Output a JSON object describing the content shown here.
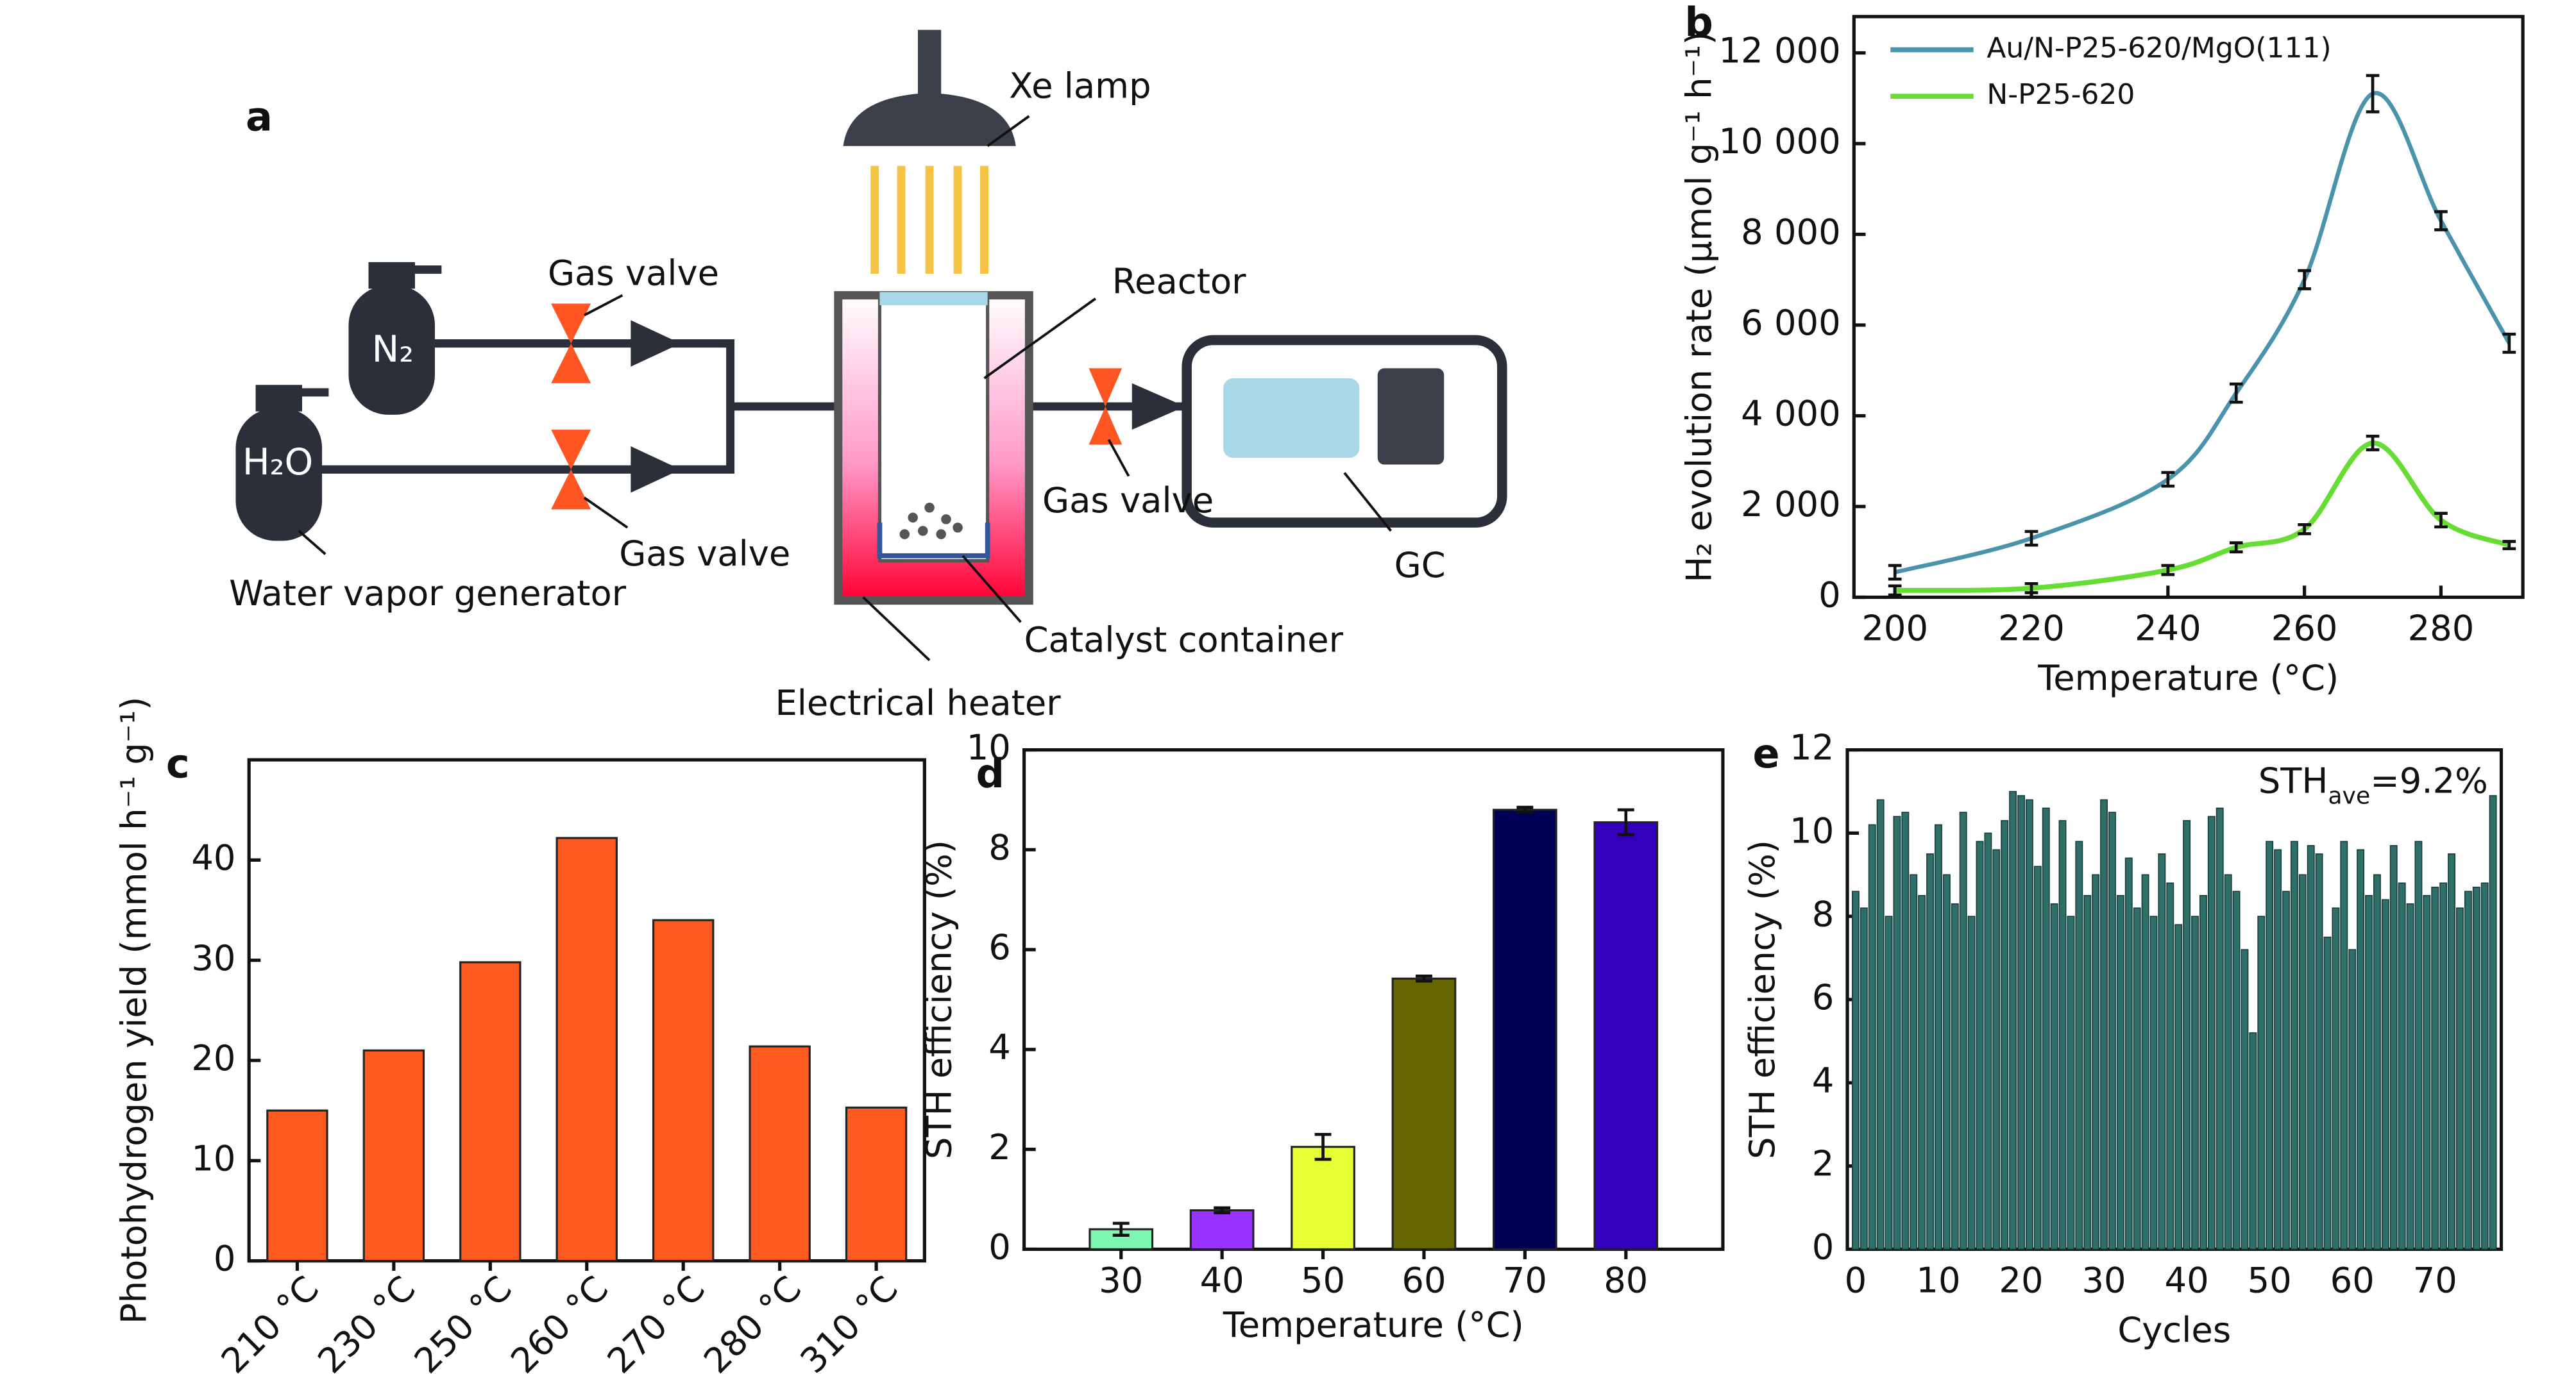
{
  "diagram": {
    "label": "a",
    "lamp": "Xe lamp",
    "valve_labels": [
      "Gas valve",
      "Gas valve",
      "Gas valve"
    ],
    "reactor": "Reactor",
    "n2": "N₂",
    "h2o": "H₂O",
    "generator": "Water vapor generator",
    "heater": "Electrical heater",
    "catalyst": "Catalyst container",
    "gc": "GC"
  },
  "chart_data": [
    {
      "type": "line",
      "label": "b",
      "x": [
        200,
        220,
        240,
        250,
        260,
        270,
        280,
        290
      ],
      "series": [
        {
          "name": "Au/N-P25-620/MgO(111)",
          "color": "#4a93ad",
          "values": [
            550,
            1300,
            2600,
            4500,
            7000,
            11100,
            8300,
            5600
          ],
          "errors": [
            150,
            150,
            150,
            200,
            200,
            400,
            200,
            200
          ]
        },
        {
          "name": "N-P25-620",
          "color": "#66dd33",
          "values": [
            150,
            200,
            600,
            1100,
            1500,
            3400,
            1700,
            1150
          ],
          "errors": [
            100,
            100,
            100,
            100,
            100,
            150,
            150,
            80
          ]
        }
      ],
      "xlim": [
        194,
        292
      ],
      "xticks": [
        200,
        220,
        240,
        260,
        280
      ],
      "ylim": [
        0,
        12800
      ],
      "yticks": [
        0,
        {
          "value": 2000,
          "label": "2 000"
        },
        {
          "value": 4000,
          "label": "4 000"
        },
        {
          "value": 6000,
          "label": "6 000"
        },
        {
          "value": 8000,
          "label": "8 000"
        },
        {
          "value": 10000,
          "label": "10 000"
        },
        {
          "value": 12000,
          "label": "12 000"
        }
      ],
      "x_label": "Temperature (°C)",
      "y_label": "H₂ evolution rate (µmol g⁻¹ h⁻¹)",
      "legend": "upper left"
    },
    {
      "type": "bar",
      "label": "c",
      "categories": [
        "210 °C",
        "230 °C",
        "250 °C",
        "260 °C",
        "270 °C",
        "280 °C",
        "310 °C"
      ],
      "values": [
        15,
        21,
        29.8,
        42.2,
        34,
        21.4,
        15.3
      ],
      "color": "#ff5a1f",
      "ylim": [
        0,
        50
      ],
      "yticks": [
        0,
        10,
        20,
        30,
        40
      ],
      "y_label": "Photohydrogen yield (mmol h⁻¹ g⁻¹)"
    },
    {
      "type": "bar",
      "label": "d",
      "categories": [
        "30",
        "40",
        "50",
        "60",
        "70",
        "80"
      ],
      "values": [
        0.4,
        0.78,
        2.05,
        5.42,
        8.8,
        8.55
      ],
      "errors": [
        0.12,
        0.05,
        0.25,
        0.05,
        0.05,
        0.25
      ],
      "colors": [
        "#7ef5b0",
        "#9933ff",
        "#e5ff33",
        "#666600",
        "#000055",
        "#3300bb"
      ],
      "ylim": [
        0,
        10
      ],
      "yticks": [
        0,
        2,
        4,
        6,
        8,
        10
      ],
      "x_label": "Temperature (°C)",
      "y_label": "STH efficiency (%)"
    },
    {
      "type": "bar",
      "label": "e",
      "x": [
        0,
        1,
        2,
        3,
        4,
        5,
        6,
        7,
        8,
        9,
        10,
        11,
        12,
        13,
        14,
        15,
        16,
        17,
        18,
        19,
        20,
        21,
        22,
        23,
        24,
        25,
        26,
        27,
        28,
        29,
        30,
        31,
        32,
        33,
        34,
        35,
        36,
        37,
        38,
        39,
        40,
        41,
        42,
        43,
        44,
        45,
        46,
        47,
        48,
        49,
        50,
        51,
        52,
        53,
        54,
        55,
        56,
        57,
        58,
        59,
        60,
        61,
        62,
        63,
        64,
        65,
        66,
        67,
        68,
        69,
        70,
        71,
        72,
        73,
        74,
        75,
        76,
        77
      ],
      "values": [
        8.6,
        8.2,
        10.2,
        10.8,
        8.0,
        10.4,
        10.5,
        9.0,
        8.5,
        9.5,
        10.2,
        9.0,
        8.3,
        10.5,
        8.0,
        9.8,
        10.0,
        9.6,
        10.3,
        11.0,
        10.9,
        10.8,
        9.2,
        10.6,
        8.3,
        10.3,
        8.0,
        9.8,
        8.5,
        9.0,
        10.8,
        10.5,
        8.5,
        9.4,
        8.2,
        9.0,
        8.0,
        9.5,
        8.8,
        7.8,
        10.3,
        8.0,
        8.5,
        10.4,
        10.6,
        9.0,
        8.6,
        7.2,
        5.2,
        8.0,
        9.8,
        9.6,
        8.6,
        9.8,
        9.0,
        9.7,
        9.5,
        7.5,
        8.2,
        9.8,
        7.2,
        9.6,
        8.5,
        9.0,
        8.4,
        9.7,
        8.8,
        8.3,
        9.8,
        8.5,
        8.7,
        8.8,
        9.5,
        8.2,
        8.6,
        8.7,
        8.8,
        10.9
      ],
      "color": "#2e6f69",
      "xlim": [
        -1,
        78
      ],
      "xticks": [
        0,
        10,
        20,
        30,
        40,
        50,
        60,
        70
      ],
      "ylim": [
        0,
        12
      ],
      "yticks": [
        0,
        2,
        4,
        6,
        8,
        10,
        12
      ],
      "x_label": "Cycles",
      "y_label": "STH efficiency (%)",
      "annotation": [
        "STH",
        "ave",
        "=9.2%"
      ]
    }
  ]
}
